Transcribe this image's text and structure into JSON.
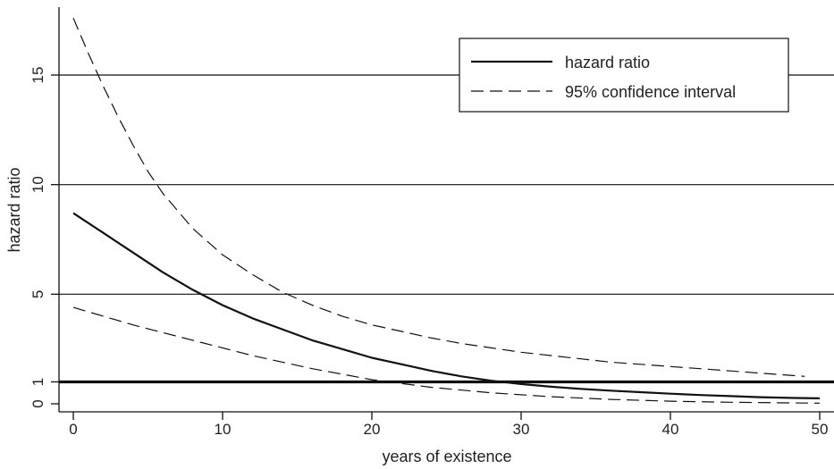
{
  "chart_data": {
    "type": "line",
    "title": "",
    "xlabel": "years of existence",
    "ylabel": "hazard ratio",
    "xlim": [
      -1.5,
      51
    ],
    "ylim": [
      0,
      18.5
    ],
    "x_ticks": [
      0,
      10,
      20,
      30,
      40,
      50
    ],
    "x_tick_labels": [
      "0",
      "10",
      "20",
      "30",
      "40",
      "50"
    ],
    "y_ticks": [
      0,
      1,
      5,
      10,
      15
    ],
    "y_tick_labels": [
      "0",
      "1",
      "5",
      "10",
      "15"
    ],
    "horizontal_reference_lines": [
      1,
      5,
      10,
      15
    ],
    "emphasized_reference_line": 1,
    "legend_position": "top-right",
    "series": [
      {
        "name": "hazard ratio",
        "style": "solid",
        "x": [
          0,
          2,
          4,
          6,
          8,
          10,
          12,
          14,
          16,
          18,
          20,
          22,
          24,
          26,
          28,
          30,
          32,
          34,
          36,
          38,
          40,
          42,
          44,
          46,
          48,
          50
        ],
        "values": [
          8.7,
          7.8,
          6.9,
          6.0,
          5.2,
          4.5,
          3.9,
          3.4,
          2.9,
          2.5,
          2.1,
          1.8,
          1.5,
          1.25,
          1.05,
          0.9,
          0.78,
          0.68,
          0.6,
          0.53,
          0.46,
          0.4,
          0.35,
          0.3,
          0.27,
          0.25
        ]
      },
      {
        "name": "95% confidence interval",
        "style": "dashed",
        "x": [
          0,
          1,
          2,
          3,
          4,
          5,
          6,
          8,
          10,
          12,
          14,
          16,
          18,
          20,
          22,
          24,
          26,
          28,
          30,
          32,
          34,
          36,
          38,
          40,
          42,
          44,
          46,
          48,
          49
        ],
        "values": [
          17.6,
          16.0,
          14.5,
          13.1,
          11.8,
          10.6,
          9.6,
          8.0,
          6.8,
          5.9,
          5.1,
          4.5,
          4.0,
          3.6,
          3.3,
          3.0,
          2.75,
          2.55,
          2.35,
          2.2,
          2.05,
          1.9,
          1.8,
          1.7,
          1.6,
          1.5,
          1.4,
          1.3,
          1.25
        ]
      },
      {
        "style": "dashed",
        "x": [
          0,
          4,
          8,
          12,
          16,
          20,
          24,
          28,
          32,
          36,
          40,
          44,
          48,
          50
        ],
        "values": [
          4.4,
          3.6,
          2.9,
          2.2,
          1.6,
          1.1,
          0.75,
          0.5,
          0.32,
          0.2,
          0.12,
          0.07,
          0.04,
          0.03
        ]
      }
    ]
  }
}
